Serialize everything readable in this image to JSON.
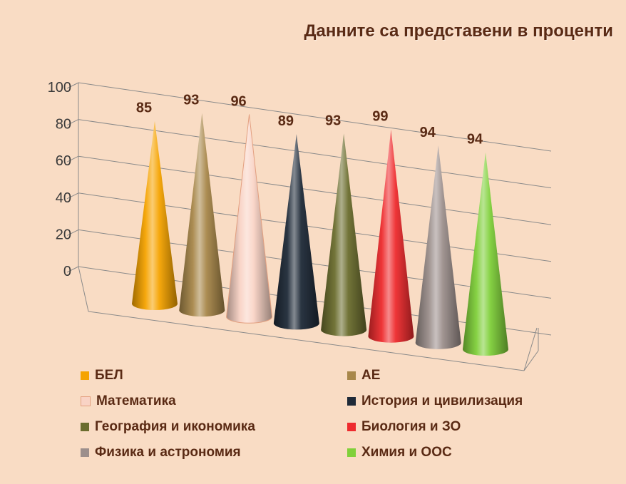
{
  "chart_data": {
    "type": "bar",
    "title": "Данните са представени в проценти",
    "categories": [
      "БЕЛ",
      "АЕ",
      "Математика",
      "История и цивилизация",
      "География и икономика",
      "Биология и ЗО",
      "Физика и астрономия",
      "Химия и ООС"
    ],
    "values": [
      85,
      93,
      96,
      89,
      93,
      99,
      94,
      94
    ],
    "colors": [
      "#f5a300",
      "#a8874a",
      "#f9d3c5",
      "#1f2a38",
      "#6b6d2e",
      "#ee2b2e",
      "#9c8f8c",
      "#80d03a"
    ],
    "yticks": [
      0,
      20,
      40,
      60,
      80,
      100
    ],
    "ylim": [
      0,
      100
    ],
    "grid": true,
    "legend_position": "bottom",
    "shape": "cone"
  }
}
